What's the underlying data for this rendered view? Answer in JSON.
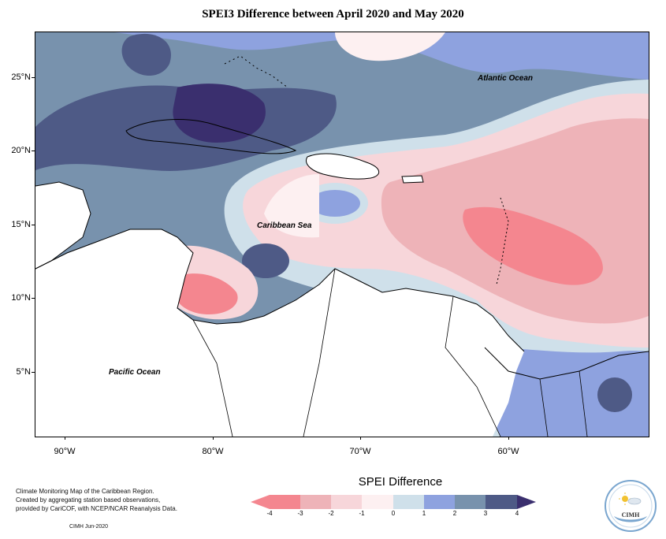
{
  "title": "SPEI3 Difference between April 2020 and May 2020",
  "map": {
    "latitudes": [
      {
        "label": "25°N",
        "value": 25
      },
      {
        "label": "20°N",
        "value": 20
      },
      {
        "label": "15°N",
        "value": 15
      },
      {
        "label": "10°N",
        "value": 10
      },
      {
        "label": "5°N",
        "value": 5
      }
    ],
    "longitudes": [
      {
        "label": "90°W",
        "value": -90
      },
      {
        "label": "80°W",
        "value": -80
      },
      {
        "label": "70°W",
        "value": -70
      },
      {
        "label": "60°W",
        "value": -60
      }
    ],
    "labels": {
      "atlantic": "Atlantic Ocean",
      "caribbean": "Caribbean Sea",
      "pacific": "Pacific Ocean"
    }
  },
  "legend": {
    "title": "SPEI Difference",
    "ticks": [
      "-4",
      "-3",
      "-2",
      "-1",
      "0",
      "1",
      "2",
      "3",
      "4"
    ],
    "colors": [
      "#f4868f",
      "#eeb3b8",
      "#f7d6da",
      "#fdf0f1",
      "#cfe0ea",
      "#8ea2df",
      "#7892ad",
      "#4e5a86",
      "#3a2f6e"
    ]
  },
  "footer": {
    "note_line1": "Climate Monitoring Map of the Caribbean Region.",
    "note_line2": "Created by aggregating station based observations,",
    "note_line3": "provided by CariCOF, with NCEP/NCAR Reanalysis Data.",
    "credit": "CIMH  Jun-2020",
    "logo_text": "CIMH"
  }
}
